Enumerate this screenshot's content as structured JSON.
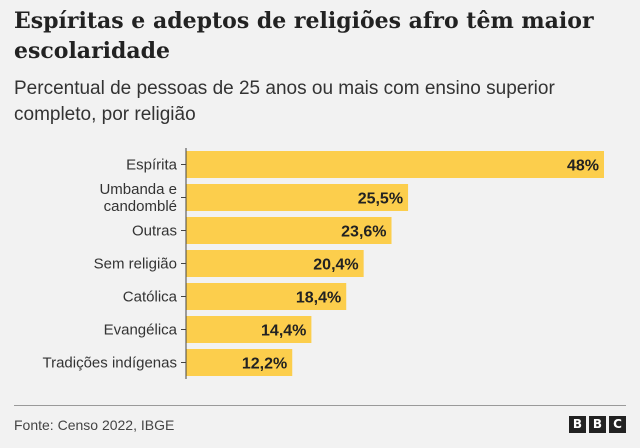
{
  "title": "Espíritas e adeptos de religiões afro têm maior escolaridade",
  "subtitle": "Percentual de pessoas de 25 anos ou mais com ensino superior completo, por religião",
  "source": "Fonte: Censo 2022, IBGE",
  "logo": [
    "B",
    "B",
    "C"
  ],
  "chart_data": {
    "type": "bar",
    "orientation": "horizontal",
    "categories": [
      [
        "Espírita"
      ],
      [
        "Umbanda e",
        "candomblé"
      ],
      [
        "Outras"
      ],
      [
        "Sem religião"
      ],
      [
        "Católica"
      ],
      [
        "Evangélica"
      ],
      [
        "Tradições indígenas"
      ]
    ],
    "values": [
      48,
      25.5,
      23.6,
      20.4,
      18.4,
      14.4,
      12.2
    ],
    "data_labels": [
      "48%",
      "25,5%",
      "23,6%",
      "20,4%",
      "18,4%",
      "14,4%",
      "12,2%"
    ],
    "xlim": [
      0,
      48
    ],
    "bar_color": "#fcce4c",
    "axis_color": "#444444",
    "grid": false,
    "legend": "none"
  }
}
